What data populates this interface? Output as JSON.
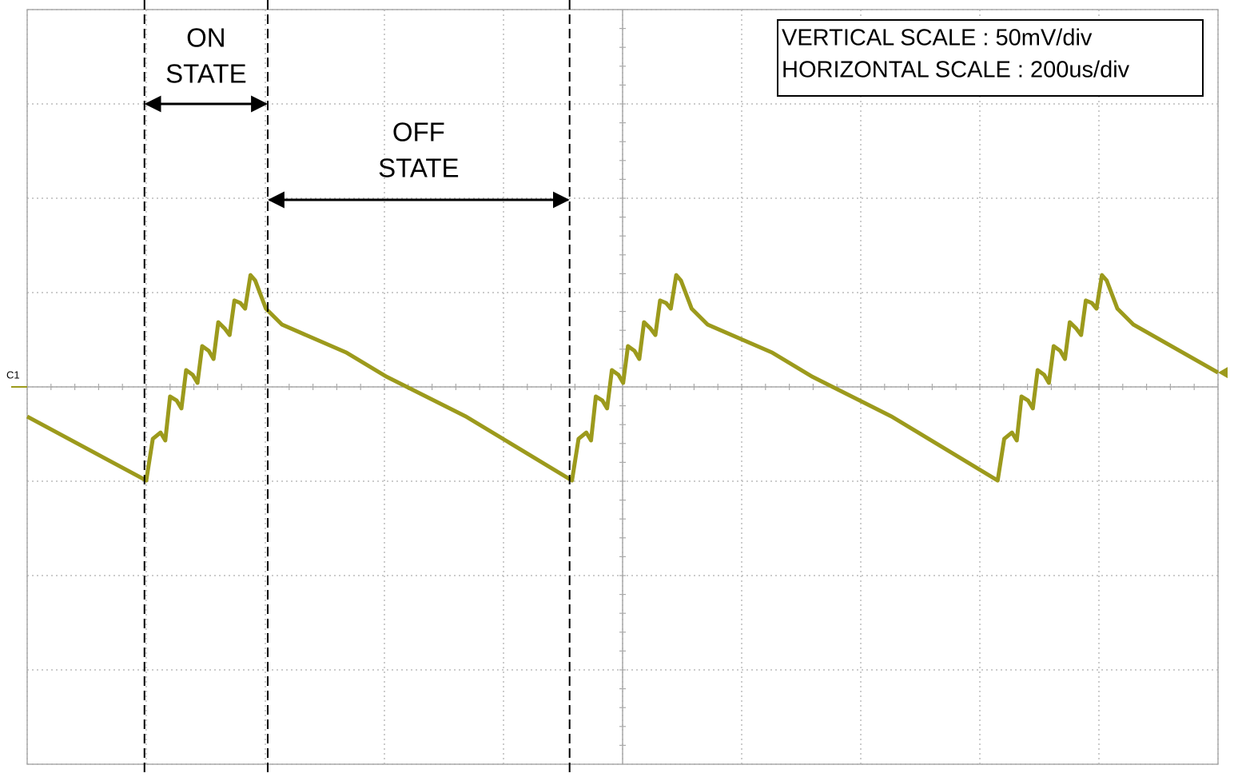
{
  "chart_data": {
    "type": "line",
    "color": "#9c9a1c",
    "channel_label": "C1",
    "scale_box": [
      "VERTICAL SCALE : 50mV/div",
      "HORIZONTAL SCALE : 200us/div"
    ],
    "on_state": {
      "label": [
        "ON",
        "STATE"
      ],
      "x": [
        197,
        404
      ]
    },
    "off_state": {
      "label": [
        "OFF",
        "STATE"
      ],
      "x": [
        404,
        911
      ]
    },
    "xlim": [
      0,
      2000
    ],
    "xticks": [
      0,
      200,
      400,
      600,
      800,
      1000,
      1200,
      1400,
      1600,
      1800,
      2000
    ],
    "ylim": [
      -200,
      200
    ],
    "yticks": [
      -200,
      -150,
      -100,
      -50,
      0,
      50,
      100,
      150,
      200
    ],
    "grid": true,
    "x": [
      0,
      200,
      211,
      224,
      232,
      240,
      251,
      259,
      267,
      278,
      286,
      294,
      305,
      313,
      321,
      332,
      340,
      348,
      358,
      366,
      375,
      383,
      401,
      428,
      536,
      603,
      737,
      915,
      926,
      939,
      947,
      955,
      966,
      974,
      982,
      993,
      1001,
      1009,
      1020,
      1028,
      1036,
      1047,
      1055,
      1063,
      1073,
      1081,
      1090,
      1098,
      1116,
      1143,
      1251,
      1318,
      1452,
      1630,
      1641,
      1654,
      1662,
      1670,
      1681,
      1689,
      1697,
      1708,
      1716,
      1724,
      1735,
      1743,
      1751,
      1762,
      1770,
      1778,
      1788,
      1796,
      1805,
      1813,
      1831,
      1858,
      2000
    ],
    "values": [
      -15.7,
      -49.6,
      -27.5,
      -24.2,
      -28.4,
      -5.1,
      -7.2,
      -11.4,
      8.9,
      6.4,
      2.1,
      21.6,
      19.1,
      14.8,
      34.3,
      30.9,
      27.5,
      45.8,
      44.5,
      41.5,
      59.3,
      56.4,
      41.5,
      33.0,
      18.2,
      5.5,
      -15.7,
      -49.6,
      -27.5,
      -24.2,
      -28.4,
      -5.1,
      -7.2,
      -11.4,
      8.9,
      6.4,
      2.1,
      21.6,
      19.1,
      14.8,
      34.3,
      30.9,
      27.5,
      45.8,
      44.5,
      41.5,
      59.3,
      56.4,
      41.5,
      33.0,
      18.2,
      5.5,
      -15.7,
      -49.6,
      -27.5,
      -24.2,
      -28.4,
      -5.1,
      -7.2,
      -11.4,
      8.9,
      6.4,
      2.1,
      21.6,
      19.1,
      14.8,
      34.3,
      30.9,
      27.5,
      45.8,
      44.5,
      41.5,
      59.3,
      56.4,
      41.5,
      33.0,
      7.6
    ]
  }
}
